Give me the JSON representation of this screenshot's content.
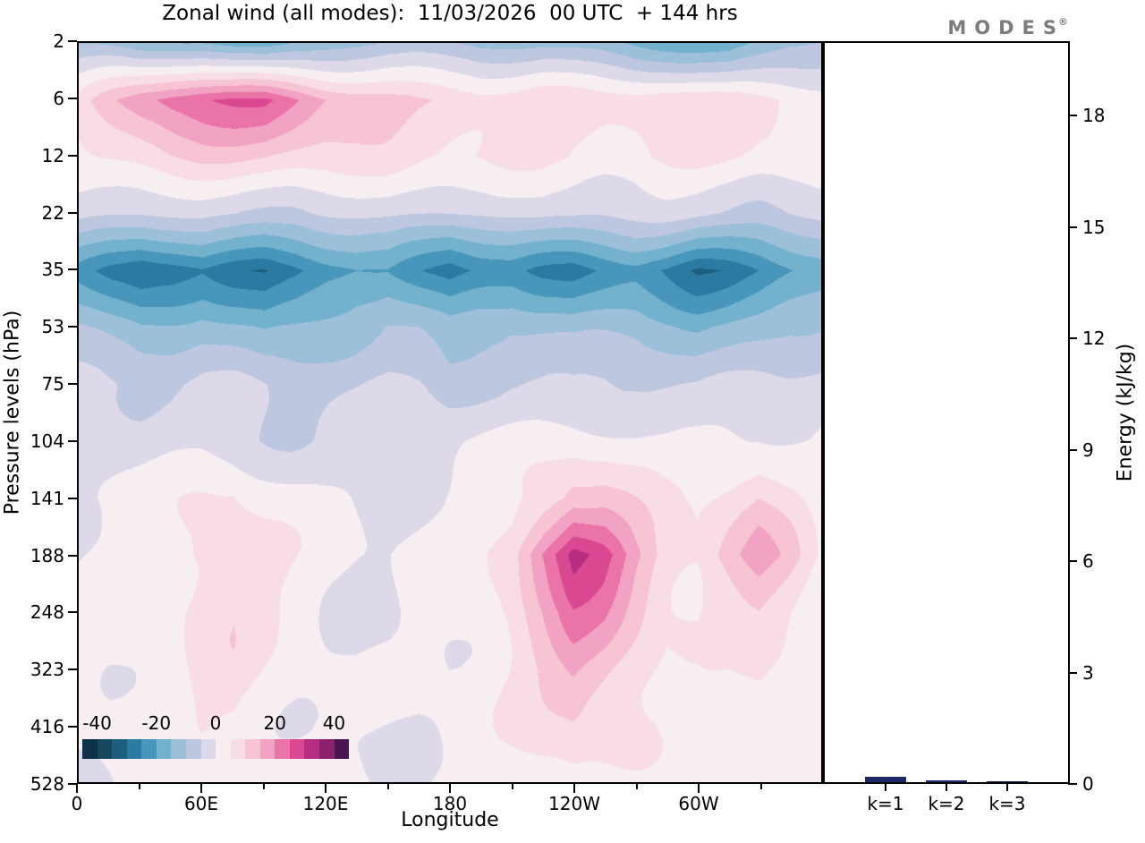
{
  "logo": {
    "text": "MODES",
    "mark": "®"
  },
  "chart_data": [
    {
      "type": "heatmap",
      "title": "Zonal wind (all modes):  11/03/2026  00 UTC  + 144 hrs",
      "xlabel": "Longitude",
      "ylabel": "Pressure levels (hPa)",
      "x_tick_labels": [
        "0",
        "60E",
        "120E",
        "180",
        "120W",
        "60W"
      ],
      "x_tick_lons": [
        0,
        60,
        120,
        180,
        240,
        300
      ],
      "x_minor_lons": [
        30,
        90,
        150,
        210,
        270,
        330
      ],
      "lon_range": [
        0,
        360
      ],
      "y_tick_labels": [
        "2",
        "6",
        "12",
        "22",
        "35",
        "53",
        "75",
        "104",
        "141",
        "188",
        "248",
        "323",
        "416",
        "528"
      ],
      "colorbar": {
        "labels": [
          "-40",
          "-20",
          "0",
          "20",
          "40"
        ],
        "values": [
          -40,
          -20,
          0,
          20,
          40
        ],
        "value_min": -45,
        "value_max": 45,
        "band_width": 5,
        "colors": [
          "#0d3247",
          "#15475f",
          "#1d5d7d",
          "#2b7aa1",
          "#4896bc",
          "#74b1cd",
          "#9cc0d9",
          "#bdc7df",
          "#ddd9e9",
          "#f6eef1",
          "#f8dde4",
          "#f6c4d3",
          "#f2a2c2",
          "#ea73a8",
          "#da4892",
          "#b72d81",
          "#8b206d",
          "#4b1450"
        ]
      },
      "grid": {
        "lons": [
          0,
          15,
          30,
          45,
          60,
          75,
          90,
          105,
          120,
          135,
          150,
          165,
          180,
          195,
          210,
          225,
          240,
          255,
          270,
          285,
          300,
          315,
          330,
          345,
          360
        ],
        "levels_hpa": [
          2,
          6,
          12,
          22,
          35,
          53,
          75,
          104,
          141,
          188,
          248,
          323,
          416,
          528
        ],
        "values": [
          [
            -10,
            -12,
            -15,
            -14,
            -13,
            -16,
            -18,
            -15,
            -12,
            -10,
            -9,
            -10,
            -12,
            -13,
            -12,
            -11,
            -12,
            -13,
            -15,
            -16,
            -17,
            -18,
            -15,
            -12,
            -10
          ],
          [
            5,
            12,
            18,
            22,
            24,
            25,
            26,
            22,
            17,
            14,
            12,
            10,
            9,
            8,
            8,
            9,
            8,
            7,
            8,
            9,
            8,
            7,
            6,
            5,
            4
          ],
          [
            4,
            7,
            9,
            11,
            12,
            12,
            11,
            9,
            7,
            6,
            6,
            5,
            5,
            6,
            7,
            7,
            6,
            5,
            5,
            6,
            6,
            5,
            4,
            4,
            3
          ],
          [
            -3,
            -4,
            -5,
            -5,
            -4,
            -4,
            -5,
            -6,
            -5,
            -4,
            -3,
            -3,
            -4,
            -5,
            -5,
            -4,
            -4,
            -5,
            -5,
            -4,
            -4,
            -4,
            -5,
            -4,
            -3
          ],
          [
            -20,
            -26,
            -30,
            -28,
            -25,
            -29,
            -32,
            -29,
            -24,
            -20,
            -19,
            -24,
            -28,
            -24,
            -22,
            -25,
            -27,
            -25,
            -23,
            -26,
            -30,
            -29,
            -26,
            -22,
            -19
          ],
          [
            -10,
            -13,
            -15,
            -14,
            -12,
            -14,
            -16,
            -14,
            -12,
            -10,
            -9,
            -11,
            -14,
            -12,
            -11,
            -12,
            -13,
            -12,
            -11,
            -12,
            -14,
            -13,
            -12,
            -10,
            -9
          ],
          [
            -4,
            -5,
            -6,
            -6,
            -5,
            -5,
            -6,
            -6,
            -5,
            -5,
            -4,
            -5,
            -7,
            -6,
            -5,
            -5,
            -5,
            -4,
            -4,
            -5,
            -6,
            -5,
            -4,
            -4,
            -3
          ],
          [
            -2,
            -2,
            -2,
            -1,
            -1,
            -2,
            -3,
            -4,
            -4,
            -3,
            -2,
            -2,
            -1,
            0,
            1,
            2,
            3,
            3,
            2,
            1,
            1,
            1,
            1,
            0,
            -1
          ],
          [
            0,
            1,
            2,
            3,
            5,
            6,
            4,
            2,
            0,
            -1,
            -1,
            0,
            1,
            2,
            4,
            8,
            13,
            12,
            8,
            4,
            3,
            6,
            10,
            6,
            2
          ],
          [
            1,
            2,
            3,
            5,
            8,
            9,
            6,
            3,
            1,
            0,
            0,
            1,
            2,
            4,
            9,
            22,
            33,
            27,
            16,
            8,
            7,
            13,
            18,
            12,
            4
          ],
          [
            1,
            2,
            3,
            4,
            7,
            8,
            5,
            3,
            1,
            0,
            0,
            1,
            2,
            3,
            7,
            14,
            22,
            19,
            12,
            6,
            5,
            7,
            10,
            7,
            3
          ],
          [
            1,
            1,
            2,
            3,
            6,
            7,
            4,
            2,
            1,
            0,
            0,
            1,
            1,
            2,
            5,
            10,
            16,
            13,
            9,
            5,
            4,
            4,
            6,
            4,
            2
          ],
          [
            0,
            1,
            2,
            2,
            4,
            5,
            3,
            2,
            1,
            0,
            0,
            0,
            1,
            2,
            4,
            7,
            10,
            8,
            6,
            4,
            3,
            3,
            4,
            3,
            1
          ],
          [
            0,
            0,
            1,
            1,
            2,
            3,
            2,
            1,
            0,
            0,
            0,
            0,
            1,
            1,
            2,
            4,
            5,
            4,
            3,
            2,
            2,
            2,
            2,
            1,
            1
          ]
        ]
      }
    },
    {
      "type": "bar",
      "ylabel": "Energy (kJ/kg)",
      "categories": [
        "k=1",
        "k=2",
        "k=3"
      ],
      "values": [
        0.15,
        0.05,
        0.03
      ],
      "y_ticks": [
        0,
        3,
        6,
        9,
        12,
        15,
        18
      ],
      "ylim": [
        0,
        20
      ],
      "bar_color": "#1c2866"
    }
  ]
}
